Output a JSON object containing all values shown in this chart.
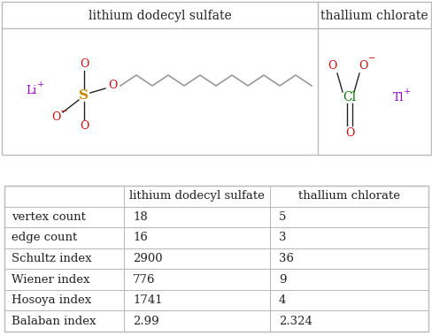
{
  "title_row": [
    "",
    "lithium dodecyl sulfate",
    "thallium chlorate"
  ],
  "row_labels": [
    "vertex count",
    "edge count",
    "Schultz index",
    "Wiener index",
    "Hosoya index",
    "Balaban index"
  ],
  "col1_values": [
    "18",
    "16",
    "2900",
    "776",
    "1741",
    "2.99"
  ],
  "col2_values": [
    "5",
    "3",
    "36",
    "9",
    "4",
    "2.324"
  ],
  "line_color": "#bbbbbb",
  "text_color": "#222222",
  "bg_color": "#ffffff",
  "font_size": 9.5,
  "header_font_size": 10,
  "molecule_panel_split": 0.735,
  "red_color": "#cc0000",
  "green_color": "#007700",
  "purple_color": "#9900cc",
  "sulfur_color": "#cc8800",
  "gray_color": "#aaaaaa",
  "chain_gray": "#999999"
}
